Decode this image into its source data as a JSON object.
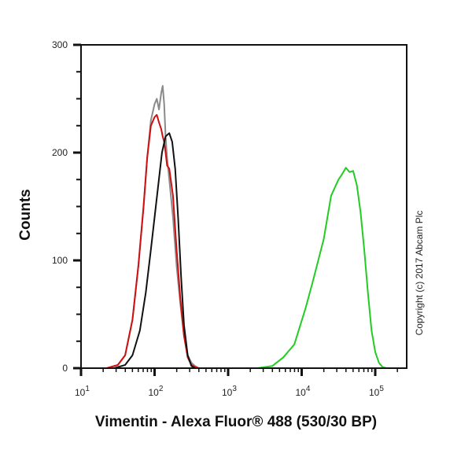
{
  "chart_data": {
    "type": "line",
    "title": "",
    "xlabel": "Vimentin - Alexa Fluor® 488 (530/30 BP)",
    "ylabel": "Counts",
    "xscale": "log",
    "xlim": [
      10,
      200000
    ],
    "ylim": [
      0,
      300
    ],
    "x_tick_labels": [
      "10^1",
      "10^2",
      "10^3",
      "10^4",
      "10^5"
    ],
    "y_tick_labels": [
      "0",
      "100",
      "200",
      "300"
    ],
    "grid": false,
    "legend": null,
    "annotation": "Copyright (c) 2017 Abcam Plc",
    "series": [
      {
        "name": "gray",
        "color": "#8a8a8a",
        "log_x": [
          1.35,
          1.5,
          1.6,
          1.7,
          1.78,
          1.85,
          1.9,
          1.95,
          2.0,
          2.03,
          2.06,
          2.09,
          2.11,
          2.13,
          2.15,
          2.17,
          2.2,
          2.25,
          2.3,
          2.35,
          2.4,
          2.45,
          2.5,
          2.55,
          2.6,
          2.65
        ],
        "counts": [
          0,
          3,
          12,
          45,
          95,
          150,
          195,
          230,
          245,
          250,
          240,
          255,
          262,
          245,
          215,
          195,
          175,
          140,
          95,
          60,
          30,
          12,
          5,
          2,
          0,
          0
        ]
      },
      {
        "name": "red",
        "color": "#d01010",
        "log_x": [
          1.35,
          1.5,
          1.6,
          1.7,
          1.78,
          1.85,
          1.9,
          1.95,
          2.0,
          2.03,
          2.06,
          2.09,
          2.11,
          2.13,
          2.15,
          2.17,
          2.2,
          2.25,
          2.3,
          2.35,
          2.4,
          2.45,
          2.5,
          2.55,
          2.6
        ],
        "counts": [
          0,
          3,
          12,
          45,
          95,
          150,
          195,
          225,
          233,
          235,
          228,
          222,
          215,
          210,
          200,
          188,
          185,
          160,
          110,
          65,
          30,
          10,
          3,
          1,
          0
        ]
      },
      {
        "name": "black",
        "color": "#111111",
        "log_x": [
          1.45,
          1.6,
          1.7,
          1.8,
          1.88,
          1.95,
          2.0,
          2.05,
          2.1,
          2.15,
          2.2,
          2.24,
          2.28,
          2.32,
          2.36,
          2.4,
          2.45,
          2.5,
          2.55
        ],
        "counts": [
          0,
          3,
          12,
          35,
          70,
          110,
          140,
          170,
          200,
          215,
          218,
          210,
          185,
          140,
          85,
          40,
          12,
          2,
          0
        ]
      },
      {
        "name": "green",
        "color": "#22cc22",
        "log_x": [
          3.4,
          3.6,
          3.75,
          3.9,
          4.05,
          4.15,
          4.3,
          4.4,
          4.5,
          4.55,
          4.6,
          4.65,
          4.7,
          4.75,
          4.8,
          4.85,
          4.9,
          4.95,
          5.0,
          5.05,
          5.1,
          5.15
        ],
        "counts": [
          0,
          2,
          10,
          22,
          55,
          80,
          120,
          160,
          175,
          180,
          186,
          182,
          183,
          170,
          145,
          110,
          70,
          35,
          15,
          5,
          1,
          0
        ]
      }
    ]
  },
  "axes": {
    "xlabel": "Vimentin - Alexa Fluor® 488 (530/30 BP)",
    "ylabel": "Counts",
    "copyright": "Copyright (c) 2017 Abcam Plc"
  }
}
